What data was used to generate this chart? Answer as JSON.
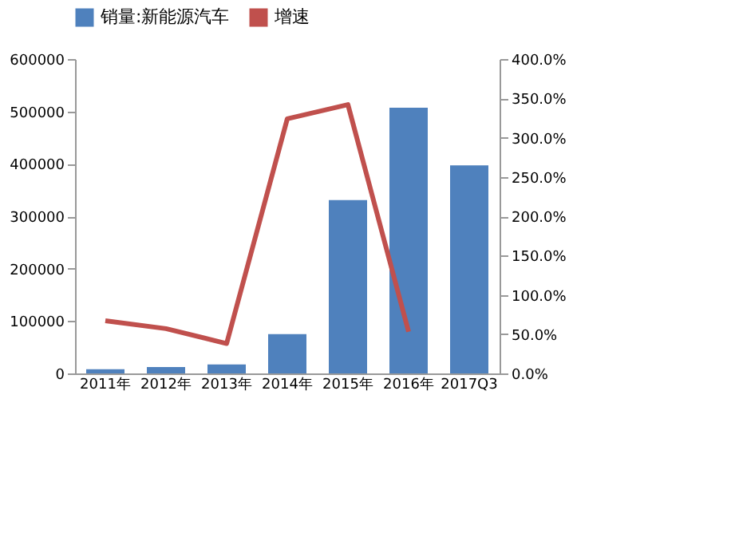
{
  "chart_data": {
    "type": "bar",
    "categories": [
      "2011年",
      "2012年",
      "2013年",
      "2014年",
      "2015年",
      "2016年",
      "2017Q3"
    ],
    "series": [
      {
        "name": "销量:新能源汽车",
        "color": "#4f81bd",
        "values": [
          8000,
          12000,
          17000,
          75000,
          331000,
          507000,
          397000
        ]
      },
      {
        "name": "增速",
        "type": "line",
        "axis": "y2",
        "color": "#c0504d",
        "values": [
          67,
          57,
          38,
          324,
          342,
          53,
          null
        ]
      }
    ],
    "ylim": [
      0,
      600000
    ],
    "yticks": [
      0,
      100000,
      200000,
      300000,
      400000,
      500000,
      600000
    ],
    "y2lim": [
      0,
      400
    ],
    "y2ticks": [
      {
        "value": 0,
        "label": "0.0%"
      },
      {
        "value": 50,
        "label": "50.0%"
      },
      {
        "value": 100,
        "label": "100.0%"
      },
      {
        "value": 150,
        "label": "150.0%"
      },
      {
        "value": 200,
        "label": "200.0%"
      },
      {
        "value": 250,
        "label": "250.0%"
      },
      {
        "value": 300,
        "label": "300.0%"
      },
      {
        "value": 350,
        "label": "350.0%"
      },
      {
        "value": 400,
        "label": "400.0%"
      }
    ],
    "grid": false,
    "legend": "top",
    "line_style": "solid",
    "marker": "none"
  }
}
